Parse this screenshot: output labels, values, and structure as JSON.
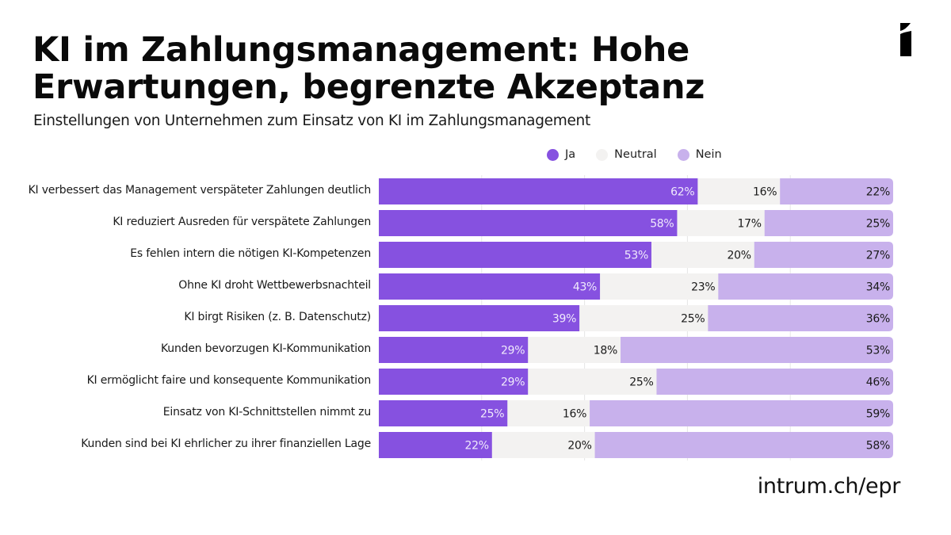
{
  "header": {
    "title_line1": "KI im Zahlungsmanagement: Hohe",
    "title_line2": "Erwartungen, begrenzte Akzeptanz",
    "subtitle": "Einstellungen von Unternehmen zum Einsatz von KI im Zahlungsmanagement"
  },
  "footer": {
    "url": "intrum.ch/epr"
  },
  "logo": {
    "icon": "intrum-logo-icon"
  },
  "colors": {
    "ja": "#8651e0",
    "neutral": "#f3f2f1",
    "nein": "#c8b1ec",
    "grid": "#e6e6e6",
    "text_dark": "#1a1a1a",
    "text_light": "#f0eafc"
  },
  "chart_data": {
    "type": "bar",
    "orientation": "horizontal",
    "stacked": true,
    "title": "KI im Zahlungsmanagement: Hohe Erwartungen, begrenzte Akzeptanz",
    "subtitle": "Einstellungen von Unternehmen zum Einsatz von KI im Zahlungsmanagement",
    "xlabel": "",
    "ylabel": "",
    "xlim": [
      0,
      100
    ],
    "grid": true,
    "legend_position": "top-right",
    "unit": "%",
    "categories": [
      "KI verbessert das Management verspäteter Zahlungen deutlich",
      "KI reduziert Ausreden für verspätete Zahlungen",
      "Es fehlen intern die nötigen KI-Kompetenzen",
      "Ohne KI droht Wettbewerbsnachteil",
      "KI birgt Risiken (z. B. Datenschutz)",
      "Kunden bevorzugen KI-Kommunikation",
      "KI ermöglicht faire und konsequente Kommunikation",
      "Einsatz von KI-Schnittstellen nimmt zu",
      "Kunden sind bei KI ehrlicher zu ihrer finanziellen Lage"
    ],
    "series": [
      {
        "name": "Ja",
        "color": "#8651e0",
        "values": [
          62,
          58,
          53,
          43,
          39,
          29,
          29,
          25,
          22
        ]
      },
      {
        "name": "Neutral",
        "color": "#f3f2f1",
        "values": [
          16,
          17,
          20,
          23,
          25,
          18,
          25,
          16,
          20
        ]
      },
      {
        "name": "Nein",
        "color": "#c8b1ec",
        "values": [
          22,
          25,
          27,
          34,
          36,
          53,
          46,
          59,
          58
        ]
      }
    ]
  }
}
